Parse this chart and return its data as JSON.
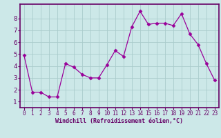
{
  "x": [
    0,
    1,
    2,
    3,
    4,
    5,
    6,
    7,
    8,
    9,
    10,
    11,
    12,
    13,
    14,
    15,
    16,
    17,
    18,
    19,
    20,
    21,
    22,
    23
  ],
  "y": [
    4.9,
    1.8,
    1.8,
    1.4,
    1.4,
    4.2,
    3.9,
    3.3,
    3.0,
    3.0,
    4.1,
    5.3,
    4.8,
    7.3,
    8.6,
    7.5,
    7.6,
    7.6,
    7.4,
    8.4,
    6.7,
    5.8,
    4.2,
    2.8
  ],
  "xlim": [
    -0.5,
    23.5
  ],
  "ylim": [
    0.5,
    9.2
  ],
  "yticks": [
    1,
    2,
    3,
    4,
    5,
    6,
    7,
    8
  ],
  "xticks": [
    0,
    1,
    2,
    3,
    4,
    5,
    6,
    7,
    8,
    9,
    10,
    11,
    12,
    13,
    14,
    15,
    16,
    17,
    18,
    19,
    20,
    21,
    22,
    23
  ],
  "xlabel": "Windchill (Refroidissement éolien,°C)",
  "line_color": "#990099",
  "marker": "D",
  "marker_size": 2.5,
  "bg_color": "#cce8e8",
  "grid_color": "#aacccc",
  "spine_color": "#660066",
  "tick_color": "#660066"
}
